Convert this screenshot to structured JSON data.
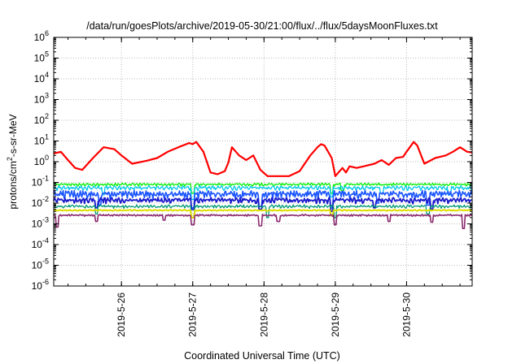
{
  "chart_data": {
    "type": "line",
    "title": "/data/run/goesPlots/archive/2019-05-30/21:00/flux/../flux/5daysMoonFluxes.txt",
    "xlabel": "Coordinated Universal Time (UTC)",
    "ylabel": {
      "base": "protons/cm",
      "sup": "2",
      "rest": "-s-sr-MeV"
    },
    "yscale": "log",
    "ylim_exp": [
      -6,
      6
    ],
    "xlim_days": [
      0,
      5.87
    ],
    "x_ticks": [
      {
        "day": 0.95,
        "label": "2019-5-26"
      },
      {
        "day": 1.95,
        "label": "2019-5-27"
      },
      {
        "day": 2.95,
        "label": "2019-5-28"
      },
      {
        "day": 3.95,
        "label": "2019-5-29"
      },
      {
        "day": 4.95,
        "label": "2019-5-30"
      }
    ],
    "grid": true,
    "series": [
      {
        "color": "#ff0000",
        "width": 2.2,
        "x": [
          0,
          0.1,
          0.2,
          0.3,
          0.4,
          0.55,
          0.7,
          0.85,
          0.95,
          1.1,
          1.3,
          1.45,
          1.6,
          1.75,
          1.9,
          1.95,
          2.0,
          2.1,
          2.2,
          2.3,
          2.4,
          2.45,
          2.5,
          2.6,
          2.7,
          2.8,
          2.9,
          3.0,
          3.15,
          3.3,
          3.45,
          3.6,
          3.7,
          3.75,
          3.8,
          3.85,
          3.9,
          3.95,
          4.05,
          4.1,
          4.15,
          4.25,
          4.35,
          4.5,
          4.6,
          4.7,
          4.8,
          4.9,
          4.95,
          5.05,
          5.1,
          5.2,
          5.35,
          5.5,
          5.6,
          5.7,
          5.8,
          5.87
        ],
        "y": [
          2.5,
          3,
          1.2,
          0.5,
          0.4,
          1.5,
          5,
          4,
          2,
          0.8,
          1.1,
          1.5,
          3,
          5,
          8,
          7,
          9,
          3,
          0.3,
          0.25,
          0.35,
          0.9,
          5,
          2,
          1.2,
          2,
          0.4,
          0.2,
          0.2,
          0.2,
          0.35,
          2,
          5,
          7,
          6,
          3,
          1.5,
          0.2,
          0.5,
          0.3,
          0.6,
          0.5,
          0.6,
          0.8,
          1.2,
          0.7,
          1.5,
          1.7,
          3,
          9,
          6,
          0.8,
          1.5,
          2,
          3,
          5,
          3,
          2.8
        ]
      },
      {
        "color": "#00ee00",
        "width": 1.3,
        "base": 0.08,
        "amp": 0.12,
        "period": 0.05,
        "drops": [
          [
            1.95,
            0.03
          ],
          [
            3.9,
            0.03
          ],
          [
            4.05,
            0.04
          ]
        ]
      },
      {
        "color": "#00c8e8",
        "width": 1.3,
        "base": 0.055,
        "amp": 0.2,
        "period": 0.06,
        "drops": [
          [
            0.7,
            0.025
          ],
          [
            1.95,
            0.015
          ],
          [
            3.9,
            0.02
          ],
          [
            4.6,
            0.03
          ],
          [
            5.55,
            0.025
          ]
        ]
      },
      {
        "color": "#1a55ff",
        "width": 1.6,
        "base": 0.028,
        "amp": 0.35,
        "period": 0.04,
        "drops": [
          [
            0.65,
            0.008
          ],
          [
            1.95,
            0.006
          ],
          [
            2.9,
            0.007
          ],
          [
            3.9,
            0.006
          ],
          [
            4.55,
            0.01
          ],
          [
            5.25,
            0.008
          ]
        ]
      },
      {
        "color": "#1a1acc",
        "width": 1.8,
        "base": 0.014,
        "amp": 0.25,
        "period": 0.05,
        "drops": [
          [
            0.6,
            0.006
          ],
          [
            1.95,
            0.005
          ],
          [
            2.9,
            0.005
          ],
          [
            3.9,
            0.004
          ],
          [
            4.5,
            0.006
          ],
          [
            5.3,
            0.005
          ]
        ]
      },
      {
        "color": "#009977",
        "width": 1.3,
        "base": 0.007,
        "amp": 0.15,
        "period": 0.05,
        "drops": [
          [
            0.6,
            0.003
          ],
          [
            1.95,
            0.002
          ],
          [
            3.0,
            0.002
          ],
          [
            3.95,
            0.002
          ],
          [
            5.25,
            0.003
          ]
        ]
      },
      {
        "color": "#dddd00",
        "width": 2.0,
        "base": 0.0045,
        "amp": 0.05,
        "period": 0.07,
        "drops": [
          [
            1.95,
            0.002
          ],
          [
            3.9,
            0.0025
          ]
        ]
      },
      {
        "color": "#8b2a6e",
        "width": 1.6,
        "base": 0.0026,
        "amp": 0.08,
        "period": 0.04,
        "drops": [
          [
            0.05,
            0.0007
          ],
          [
            0.6,
            0.0013
          ],
          [
            1.55,
            0.0015
          ],
          [
            1.95,
            0.0009
          ],
          [
            2.9,
            0.0008
          ],
          [
            3.15,
            0.0013
          ],
          [
            3.95,
            0.0009
          ],
          [
            4.7,
            0.0013
          ],
          [
            5.3,
            0.0012
          ],
          [
            5.75,
            0.0006
          ]
        ]
      }
    ]
  }
}
